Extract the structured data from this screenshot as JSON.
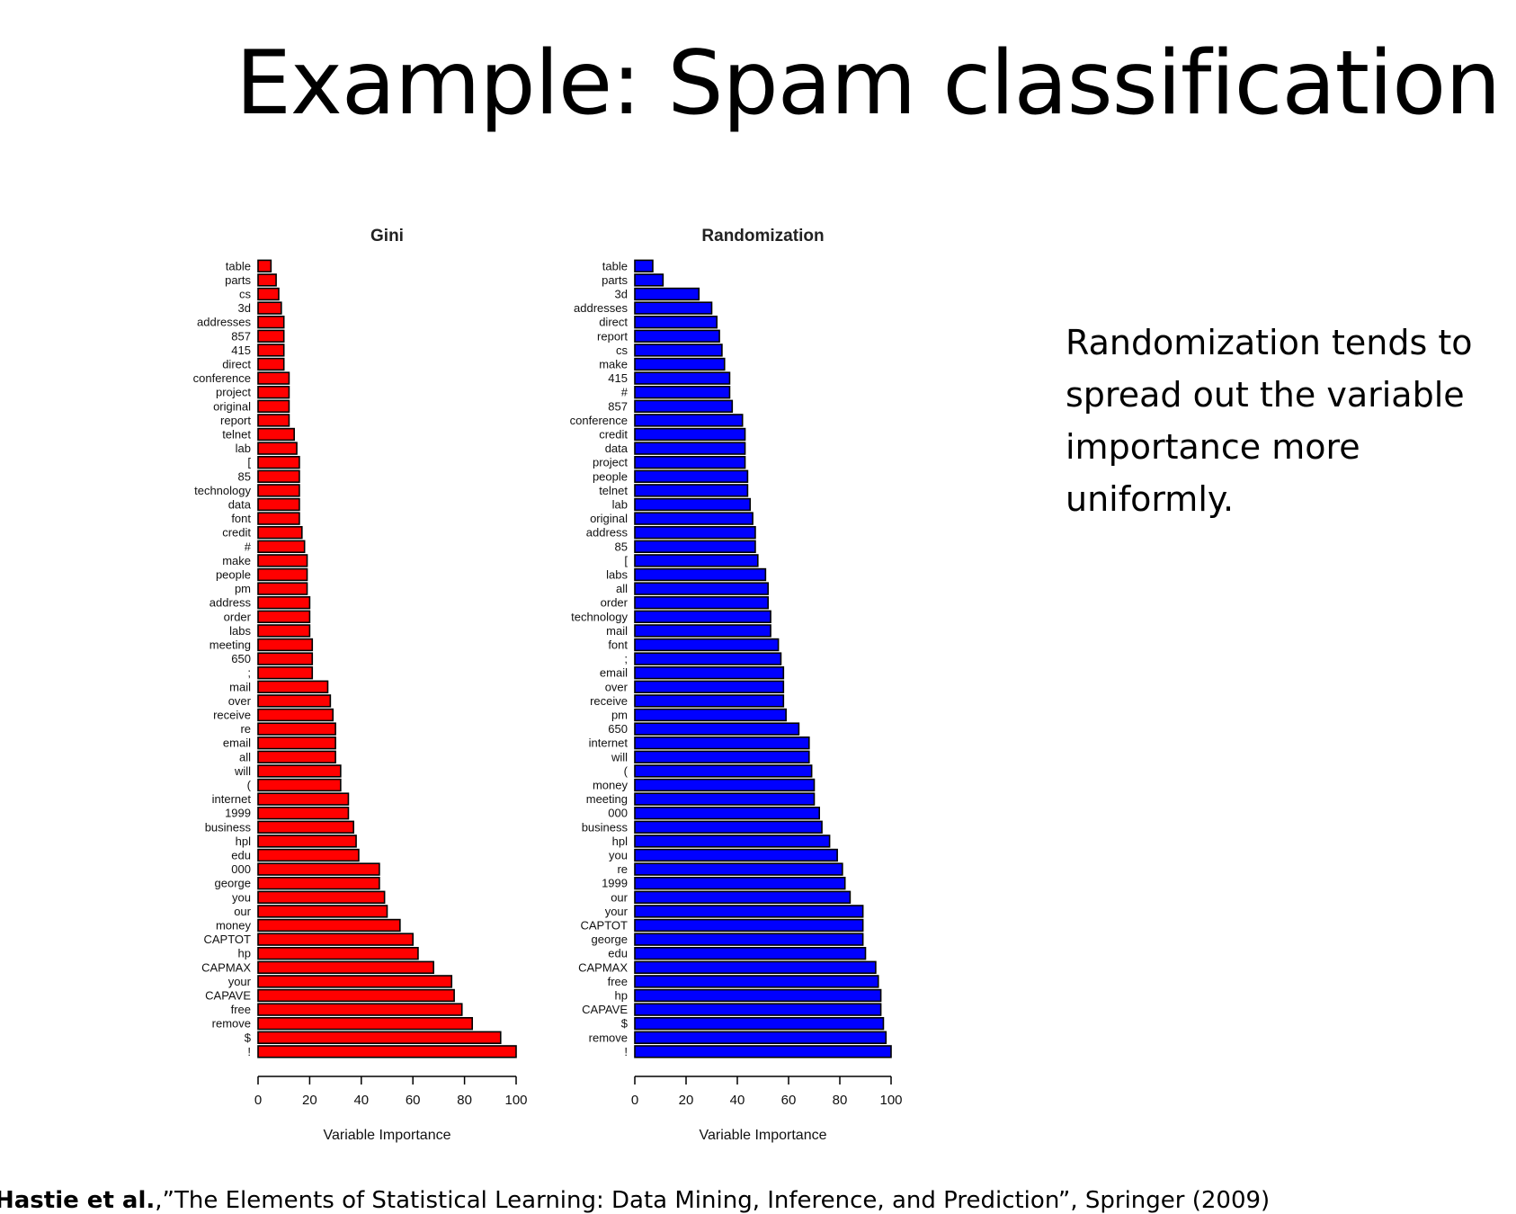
{
  "slide": {
    "title": "Example: Spam classification",
    "note": "Randomization tends to spread out the variable importance more uniformly.",
    "citation_author": "Hastie et al.",
    "citation_rest": ",”The Elements of Statistical Learning: Data Mining, Inference, and Prediction”, Springer (2009)"
  },
  "colors": {
    "gini_bar": "#ff0000",
    "randomization_bar": "#0000ff",
    "bar_outline": "#000000"
  },
  "chart_data": [
    {
      "type": "bar",
      "orientation": "horizontal",
      "title": "Gini",
      "xlabel": "Variable Importance",
      "xlim": [
        0,
        100
      ],
      "xticks": [
        0,
        20,
        40,
        60,
        80,
        100
      ],
      "categories": [
        "table",
        "parts",
        "cs",
        "3d",
        "addresses",
        "857",
        "415",
        "direct",
        "conference",
        "project",
        "original",
        "report",
        "telnet",
        "lab",
        "[",
        "85",
        "technology",
        "data",
        "font",
        "credit",
        "#",
        "make",
        "people",
        "pm",
        "address",
        "order",
        "labs",
        "meeting",
        "650",
        ";",
        "mail",
        "over",
        "receive",
        "re",
        "email",
        "all",
        "will",
        "(",
        "internet",
        "1999",
        "business",
        "hpl",
        "edu",
        "000",
        "george",
        "you",
        "our",
        "money",
        "CAPTOT",
        "hp",
        "CAPMAX",
        "your",
        "CAPAVE",
        "free",
        "remove",
        "$",
        "!"
      ],
      "values": [
        5,
        7,
        8,
        9,
        10,
        10,
        10,
        10,
        12,
        12,
        12,
        12,
        14,
        15,
        16,
        16,
        16,
        16,
        16,
        17,
        18,
        19,
        19,
        19,
        20,
        20,
        20,
        21,
        21,
        21,
        27,
        28,
        29,
        30,
        30,
        30,
        32,
        32,
        35,
        35,
        37,
        38,
        39,
        47,
        47,
        49,
        50,
        55,
        60,
        62,
        68,
        75,
        76,
        79,
        83,
        94,
        100
      ]
    },
    {
      "type": "bar",
      "orientation": "horizontal",
      "title": "Randomization",
      "xlabel": "Variable Importance",
      "xlim": [
        0,
        100
      ],
      "xticks": [
        0,
        20,
        40,
        60,
        80,
        100
      ],
      "categories": [
        "table",
        "parts",
        "3d",
        "addresses",
        "direct",
        "report",
        "cs",
        "make",
        "415",
        "#",
        "857",
        "conference",
        "credit",
        "data",
        "project",
        "people",
        "telnet",
        "lab",
        "original",
        "address",
        "85",
        "[",
        "labs",
        "all",
        "order",
        "technology",
        "mail",
        "font",
        ";",
        "email",
        "over",
        "receive",
        "pm",
        "650",
        "internet",
        "will",
        "(",
        "money",
        "meeting",
        "000",
        "business",
        "hpl",
        "you",
        "re",
        "1999",
        "our",
        "your",
        "CAPTOT",
        "george",
        "edu",
        "CAPMAX",
        "free",
        "hp",
        "CAPAVE",
        "$",
        "remove",
        "!"
      ],
      "values": [
        7,
        11,
        25,
        30,
        32,
        33,
        34,
        35,
        37,
        37,
        38,
        42,
        43,
        43,
        43,
        44,
        44,
        45,
        46,
        47,
        47,
        48,
        51,
        52,
        52,
        53,
        53,
        56,
        57,
        58,
        58,
        58,
        59,
        64,
        68,
        68,
        69,
        70,
        70,
        72,
        73,
        76,
        79,
        81,
        82,
        84,
        89,
        89,
        89,
        90,
        94,
        95,
        96,
        96,
        97,
        98,
        100
      ]
    }
  ]
}
